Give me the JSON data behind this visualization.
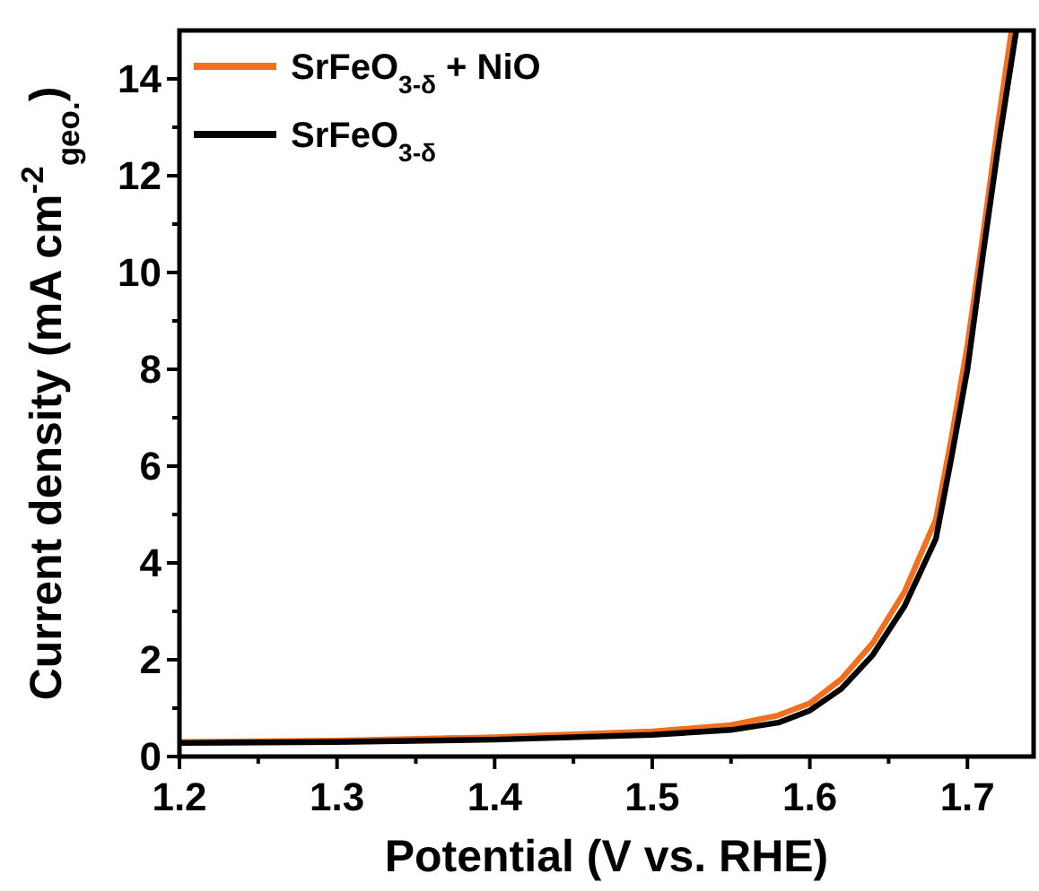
{
  "chart_data": {
    "type": "line",
    "xlabel": "Potential (V vs. RHE)",
    "ylabel": "Current density (mA cm$^{-2}$$_{geo.}$)",
    "xlim": [
      1.2,
      1.742
    ],
    "ylim": [
      0,
      15
    ],
    "xticks": [
      1.2,
      {
        "value": 1.25,
        "label": null
      },
      1.3,
      {
        "value": 1.35,
        "label": null
      },
      1.4,
      {
        "value": 1.45,
        "label": null
      },
      1.5,
      {
        "value": 1.55,
        "label": null
      },
      1.6,
      {
        "value": 1.65,
        "label": null
      },
      1.7
    ],
    "yticks": [
      0,
      {
        "value": 1,
        "label": null
      },
      2,
      {
        "value": 3,
        "label": null
      },
      4,
      {
        "value": 5,
        "label": null
      },
      6,
      {
        "value": 7,
        "label": null
      },
      8,
      {
        "value": 9,
        "label": null
      },
      10,
      {
        "value": 11,
        "label": null
      },
      12,
      {
        "value": 13,
        "label": null
      },
      14
    ],
    "legend": "top left",
    "grid": false,
    "marker": "none",
    "line_style": "solid",
    "series": [
      {
        "name": "SrFeO$_{3-δ}$ + NiO",
        "color": "#f07020",
        "x": [
          1.2,
          1.3,
          1.4,
          1.5,
          1.55,
          1.58,
          1.6,
          1.62,
          1.64,
          1.66,
          1.68,
          1.69,
          1.7,
          1.71,
          1.72,
          1.728
        ],
        "values": [
          0.3,
          0.33,
          0.4,
          0.52,
          0.65,
          0.85,
          1.1,
          1.6,
          2.35,
          3.4,
          4.9,
          6.6,
          8.5,
          10.8,
          13.2,
          15
        ]
      },
      {
        "name": "SrFeO$_{3-δ}$",
        "color": "#000000",
        "x": [
          1.2,
          1.3,
          1.4,
          1.5,
          1.55,
          1.58,
          1.6,
          1.62,
          1.64,
          1.66,
          1.68,
          1.69,
          1.7,
          1.71,
          1.72,
          1.731
        ],
        "values": [
          0.28,
          0.3,
          0.35,
          0.45,
          0.55,
          0.7,
          0.95,
          1.4,
          2.1,
          3.1,
          4.5,
          6.2,
          8.0,
          10.4,
          12.7,
          15
        ]
      }
    ]
  }
}
